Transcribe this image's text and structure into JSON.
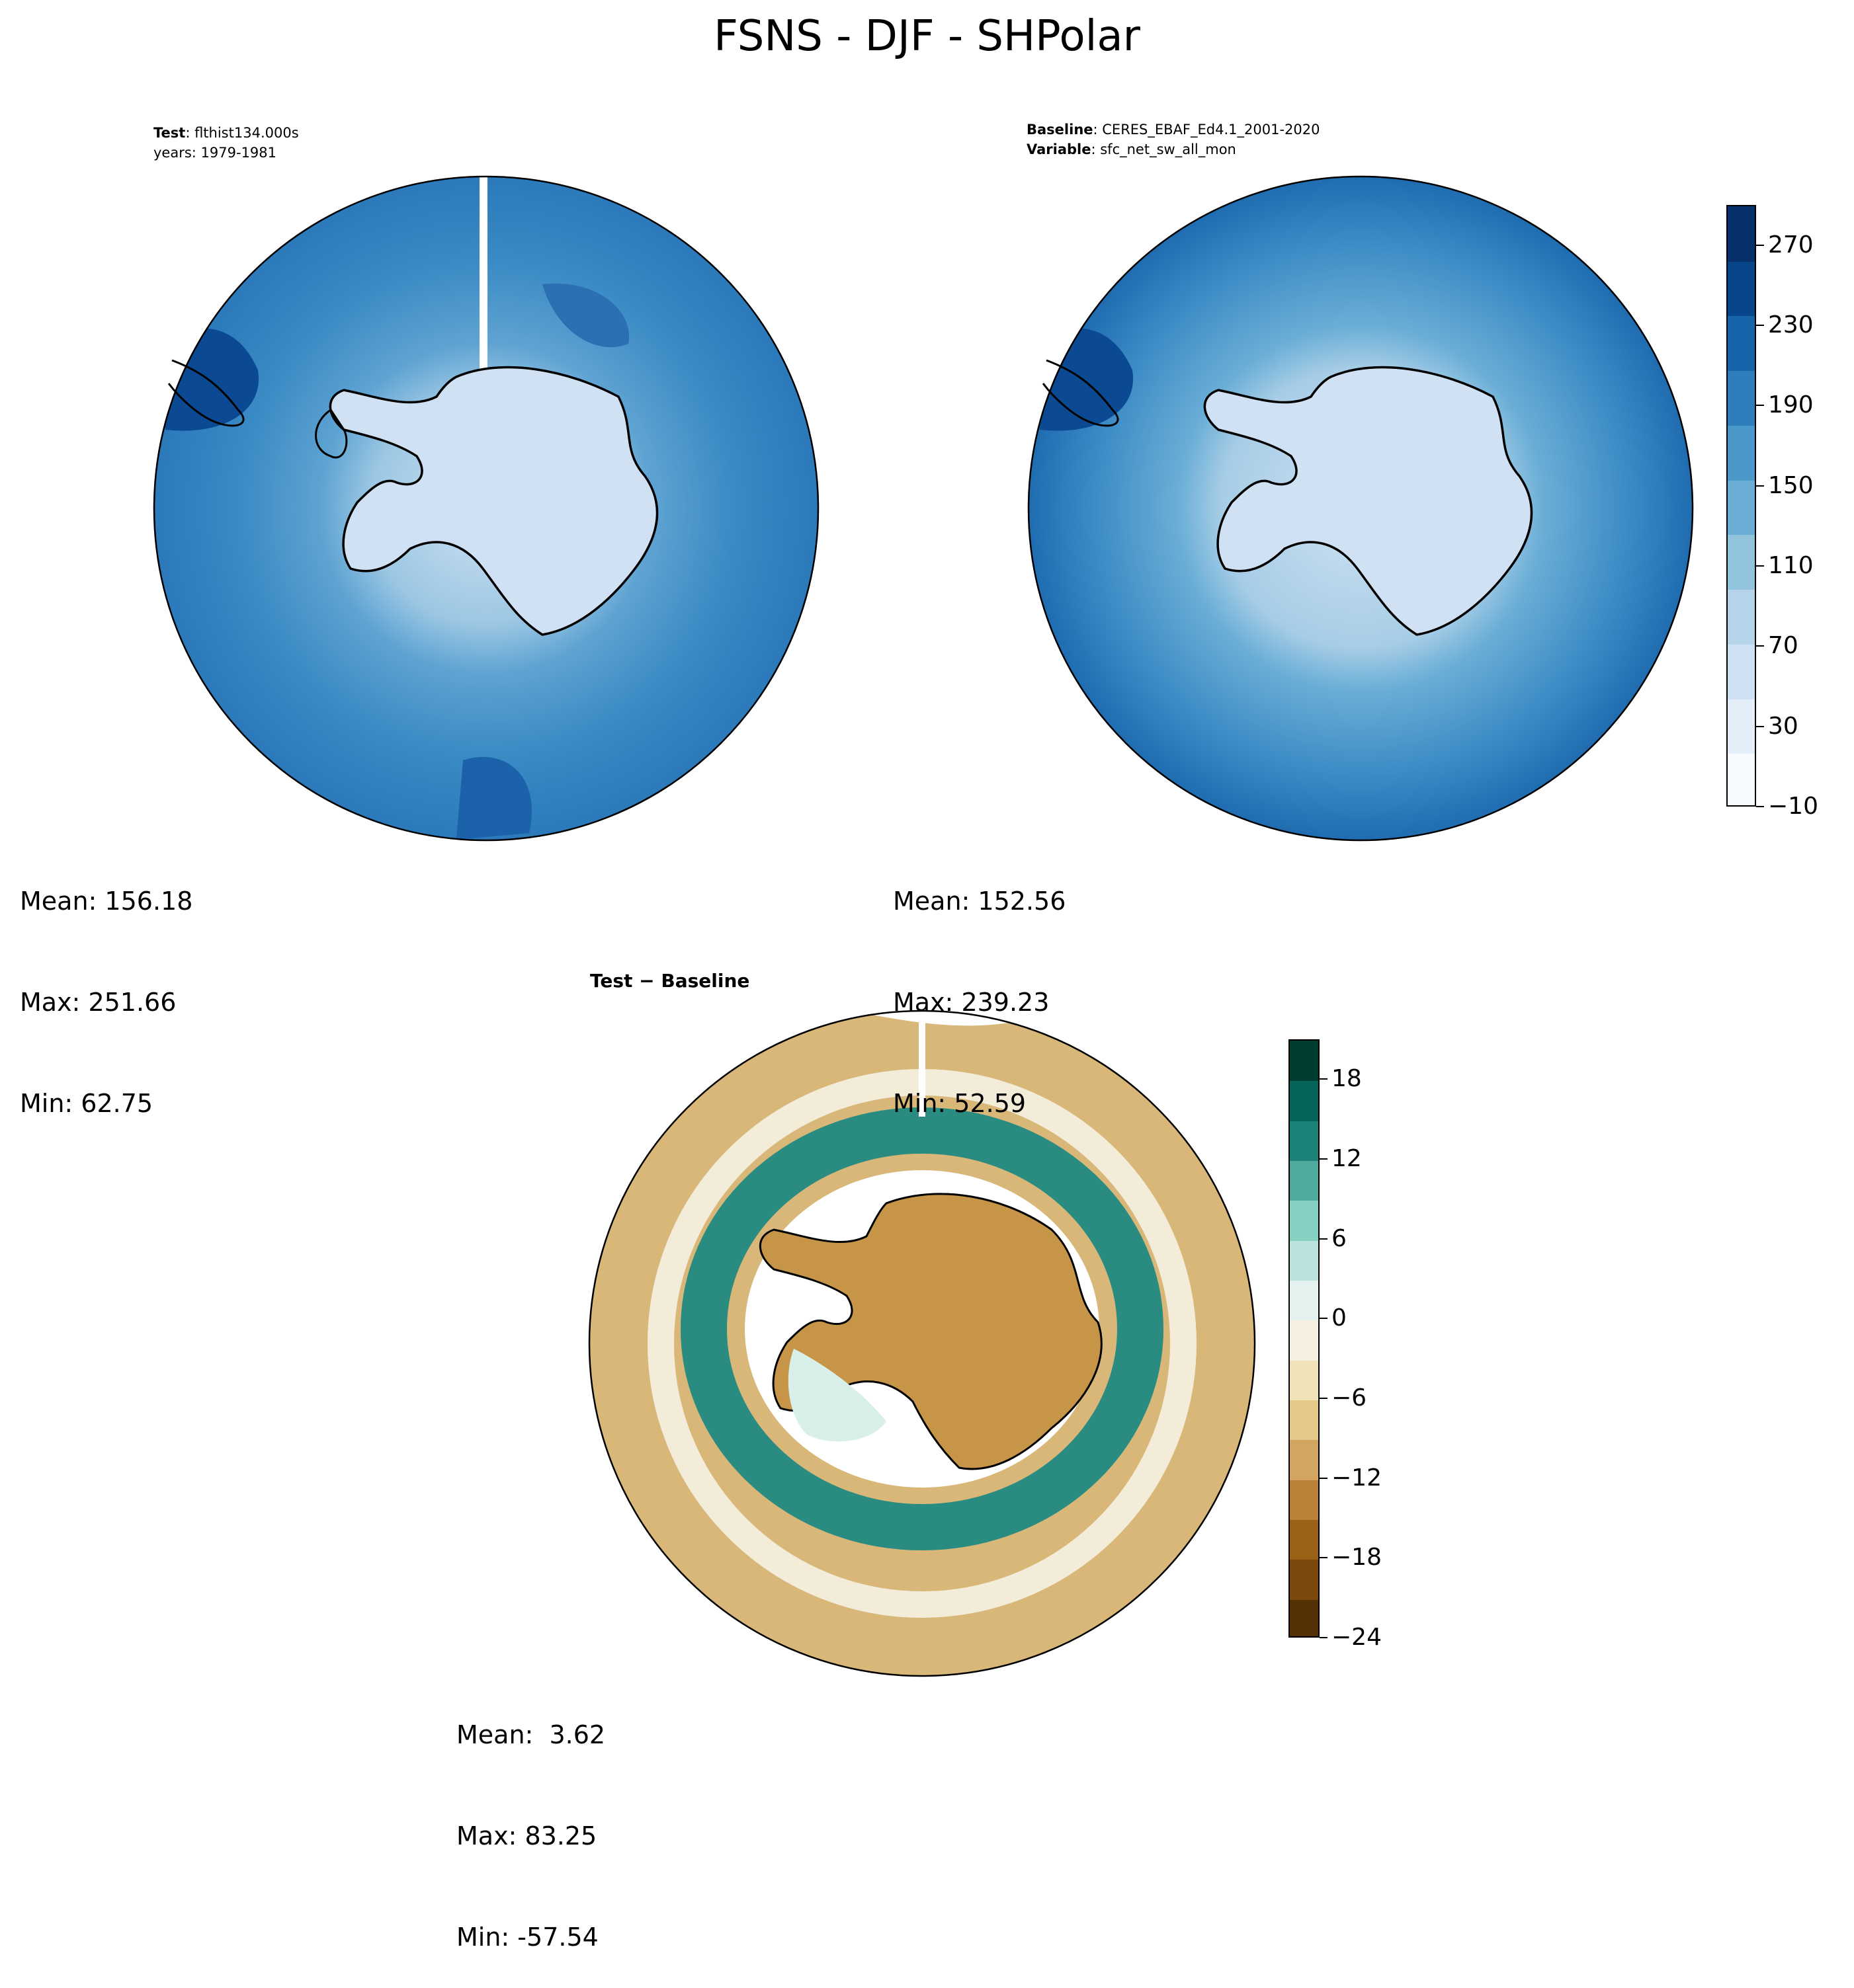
{
  "figure": {
    "title": "FSNS - DJF - SHPolar"
  },
  "panels": {
    "test": {
      "label_bold": "Test",
      "label_value": ": flthist134.000s",
      "label_line2": "years: 1979-1981",
      "stats": {
        "mean": "Mean: 156.18",
        "max": "Max: 251.66",
        "min": "Min: 62.75"
      }
    },
    "baseline": {
      "label_bold": "Baseline",
      "label_value": ": CERES_EBAF_Ed4.1_2001-2020",
      "label2_bold": "Variable",
      "label2_value": ": sfc_net_sw_all_mon",
      "stats": {
        "mean": "Mean: 152.56",
        "max": "Max: 239.23",
        "min": "Min: 52.59"
      }
    },
    "diff": {
      "label_bold": "Test − Baseline",
      "stats": {
        "mean": "Mean:  3.62",
        "max": "Max: 83.25",
        "min": "Min: -57.54"
      }
    }
  },
  "colorbars": {
    "main": {
      "tick_labels": [
        "270",
        "230",
        "190",
        "150",
        "110",
        "70",
        "30",
        "−10"
      ],
      "colors": [
        "#f7fbff",
        "#e3eef9",
        "#cfe1f2",
        "#b5d4e9",
        "#93c4de",
        "#6aaed6",
        "#4a98c9",
        "#2e7ebc",
        "#1764ab",
        "#08468b",
        "#08306b"
      ]
    },
    "diff": {
      "tick_labels": [
        "18",
        "12",
        "6",
        "0",
        "−6",
        "−12",
        "−18",
        "−24"
      ],
      "colors": [
        "#543005",
        "#7a4a0c",
        "#9a6216",
        "#ba8036",
        "#d2a65f",
        "#e6c98a",
        "#f2e2b8",
        "#f5f0e2",
        "#e4f2ef",
        "#b9e3dc",
        "#86cfc3",
        "#4fa99d",
        "#1d8278",
        "#05655a",
        "#003c30"
      ]
    }
  },
  "chart_data": [
    {
      "type": "heatmap",
      "title": "FSNS - DJF - SHPolar",
      "panel": "Test",
      "case": "flthist134.000s",
      "years": "1979-1981",
      "projection": "south polar stereographic",
      "colorbar_range": [
        -10,
        290
      ],
      "colorbar_ticks": [
        -10,
        30,
        70,
        110,
        150,
        190,
        230,
        270
      ],
      "mean": 156.18,
      "max": 251.66,
      "min": 62.75
    },
    {
      "type": "heatmap",
      "panel": "Baseline",
      "case": "CERES_EBAF_Ed4.1_2001-2020",
      "variable": "sfc_net_sw_all_mon",
      "projection": "south polar stereographic",
      "colorbar_range": [
        -10,
        290
      ],
      "colorbar_ticks": [
        -10,
        30,
        70,
        110,
        150,
        190,
        230,
        270
      ],
      "mean": 152.56,
      "max": 239.23,
      "min": 52.59
    },
    {
      "type": "heatmap",
      "panel": "Test − Baseline",
      "projection": "south polar stereographic",
      "colorbar_range": [
        -24,
        21
      ],
      "colorbar_ticks": [
        -24,
        -18,
        -12,
        -6,
        0,
        6,
        12,
        18
      ],
      "mean": 3.62,
      "max": 83.25,
      "min": -57.54
    }
  ]
}
